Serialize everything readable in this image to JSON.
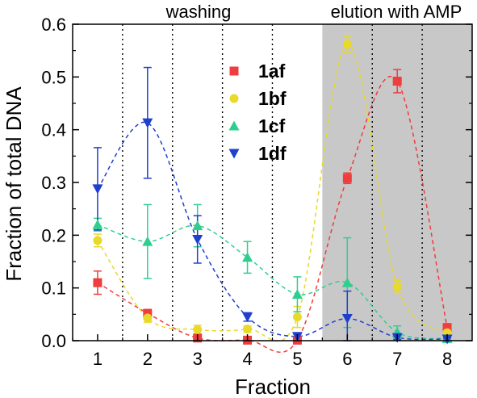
{
  "chart_data": {
    "type": "scatter",
    "xlabel": "Fraction",
    "ylabel": "Fraction of total DNA",
    "xlim": [
      0.5,
      8.5
    ],
    "ylim": [
      0,
      0.6
    ],
    "xticks": [
      "1",
      "2",
      "3",
      "4",
      "5",
      "6",
      "7",
      "8"
    ],
    "yticks": [
      "0.0",
      "0.1",
      "0.2",
      "0.3",
      "0.4",
      "0.5",
      "0.6"
    ],
    "region_labels": {
      "washing": "washing",
      "elution": "elution with AMP"
    },
    "shaded_region": {
      "x_start": 5.5,
      "x_end": 8.5,
      "color": "#c8c8c8"
    },
    "dotted_lines_x": [
      1.5,
      2.5,
      3.5,
      4.5,
      6.5,
      7.5
    ],
    "legend_position": "top-center",
    "series": [
      {
        "name": "1af",
        "color": "#f03c3c",
        "marker": "square",
        "x": [
          1,
          2,
          3,
          4,
          5,
          6,
          7,
          8
        ],
        "y": [
          0.11,
          0.052,
          0.005,
          0.001,
          0.001,
          0.308,
          0.492,
          0.025
        ],
        "err": [
          0.022,
          0.005,
          0.003,
          0.002,
          0.002,
          0.01,
          0.022,
          0.004
        ]
      },
      {
        "name": "1bf",
        "color": "#e9d92a",
        "marker": "circle",
        "x": [
          1,
          2,
          3,
          4,
          5,
          6,
          7,
          8
        ],
        "y": [
          0.19,
          0.043,
          0.021,
          0.022,
          0.045,
          0.562,
          0.102,
          0.015
        ],
        "err": [
          0.012,
          0.008,
          0.008,
          0.006,
          0.02,
          0.015,
          0.012,
          0.005
        ]
      },
      {
        "name": "1cf",
        "color": "#2ecf8e",
        "marker": "triangle-up",
        "x": [
          1,
          2,
          3,
          4,
          5,
          6,
          7,
          8
        ],
        "y": [
          0.22,
          0.188,
          0.218,
          0.158,
          0.088,
          0.11,
          0.016,
          0.004
        ],
        "err": [
          0.012,
          0.07,
          0.04,
          0.03,
          0.033,
          0.085,
          0.012,
          0.003
        ]
      },
      {
        "name": "1df",
        "color": "#1f3fd0",
        "marker": "triangle-down",
        "x": [
          1,
          2,
          3,
          4,
          5,
          6,
          7,
          8
        ],
        "y": [
          0.288,
          0.413,
          0.192,
          0.045,
          0.008,
          0.042,
          0.006,
          0.003
        ],
        "err": [
          0.078,
          0.105,
          0.045,
          0.008,
          0.004,
          0.052,
          0.004,
          0.002
        ]
      }
    ]
  }
}
